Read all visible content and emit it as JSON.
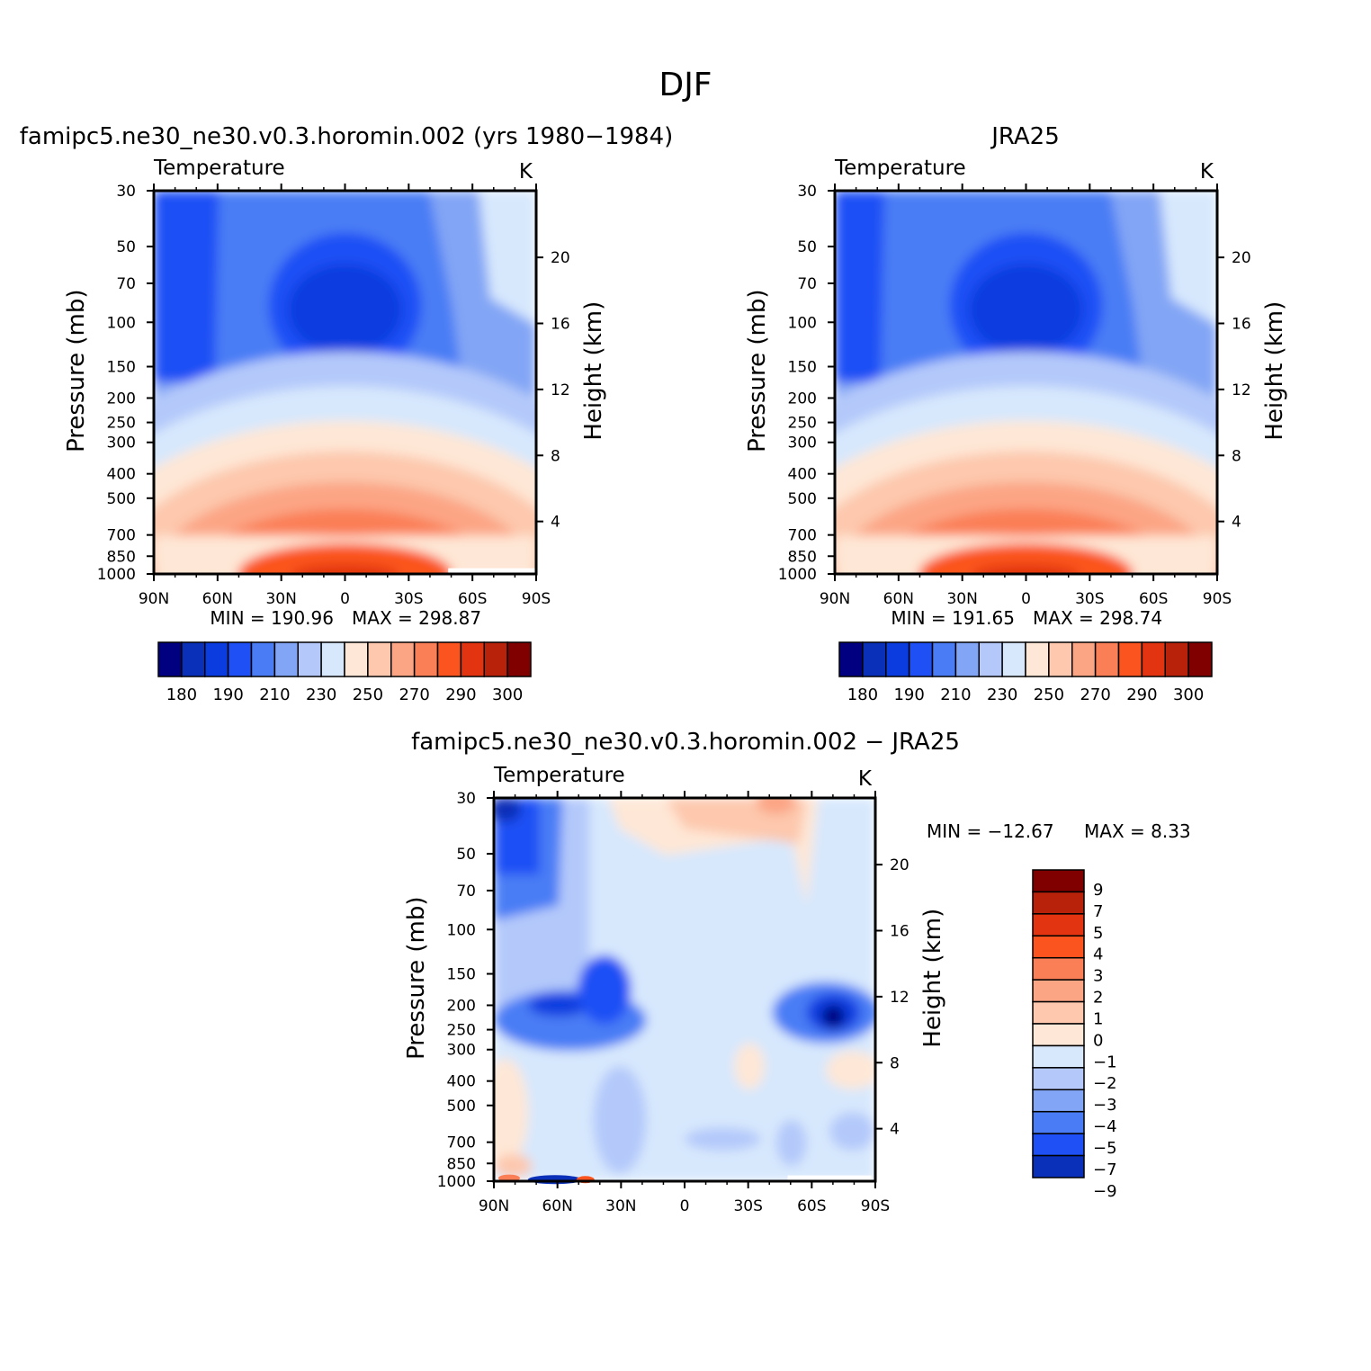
{
  "figure_title": "DJF",
  "colors": {
    "temperature": [
      "#000080",
      "#0a2fb8",
      "#0a3ce0",
      "#1e50f5",
      "#4a7df5",
      "#82a5f5",
      "#b4c9fa",
      "#d7e8fd",
      "#fee7d6",
      "#fdc8ad",
      "#fca585",
      "#fb7f56",
      "#fb541e",
      "#e23410",
      "#b8210a",
      "#800000"
    ],
    "difference": [
      "#000080",
      "#0a2fb8",
      "#0a3ce0",
      "#1e50f5",
      "#4a7df5",
      "#82a5f5",
      "#b4c9fa",
      "#d7e8fd",
      "#fee7d6",
      "#fdc8ad",
      "#fca585",
      "#fb7f56",
      "#fb541e",
      "#e23410",
      "#b8210a",
      "#800000"
    ]
  },
  "chart_data": [
    {
      "id": "model",
      "type": "heatmap",
      "title": "famipc5.ne30_ne30.v0.3.horomin.002 (yrs 1980−1984)",
      "variable": "Temperature",
      "units": "K",
      "ylabel": "Pressure (mb)",
      "ylabel_right": "Height (km)",
      "x_ticks": [
        "90N",
        "60N",
        "30N",
        "0",
        "30S",
        "60S",
        "90S"
      ],
      "y_ticks": [
        "30",
        "50",
        "70",
        "100",
        "150",
        "200",
        "250",
        "300",
        "400",
        "500",
        "700",
        "850",
        "1000"
      ],
      "y_ticks_right": [
        "20",
        "16",
        "12",
        "8",
        "4"
      ],
      "min_label": "MIN = 190.96",
      "max_label": "MAX = 298.87",
      "colorbar_labels": [
        "180",
        "190",
        "210",
        "230",
        "250",
        "270",
        "290",
        "300"
      ]
    },
    {
      "id": "obs",
      "type": "heatmap",
      "title": "JRA25",
      "variable": "Temperature",
      "units": "K",
      "ylabel": "Pressure (mb)",
      "ylabel_right": "Height (km)",
      "x_ticks": [
        "90N",
        "60N",
        "30N",
        "0",
        "30S",
        "60S",
        "90S"
      ],
      "y_ticks": [
        "30",
        "50",
        "70",
        "100",
        "150",
        "200",
        "250",
        "300",
        "400",
        "500",
        "700",
        "850",
        "1000"
      ],
      "y_ticks_right": [
        "20",
        "16",
        "12",
        "8",
        "4"
      ],
      "min_label": "MIN = 191.65",
      "max_label": "MAX = 298.74",
      "colorbar_labels": [
        "180",
        "190",
        "210",
        "230",
        "250",
        "270",
        "290",
        "300"
      ]
    },
    {
      "id": "diff",
      "type": "heatmap",
      "title": "famipc5.ne30_ne30.v0.3.horomin.002 − JRA25",
      "variable": "Temperature",
      "units": "K",
      "ylabel": "Pressure (mb)",
      "ylabel_right": "Height (km)",
      "x_ticks": [
        "90N",
        "60N",
        "30N",
        "0",
        "30S",
        "60S",
        "90S"
      ],
      "y_ticks": [
        "30",
        "50",
        "70",
        "100",
        "150",
        "200",
        "250",
        "300",
        "400",
        "500",
        "700",
        "850",
        "1000"
      ],
      "y_ticks_right": [
        "20",
        "16",
        "12",
        "8",
        "4"
      ],
      "min_label": "MIN = −12.67",
      "max_label": "MAX =    8.33",
      "colorbar_labels": [
        "9",
        "7",
        "5",
        "4",
        "3",
        "2",
        "1",
        "0",
        "−1",
        "−2",
        "−3",
        "−4",
        "−5",
        "−7",
        "−9"
      ]
    }
  ]
}
